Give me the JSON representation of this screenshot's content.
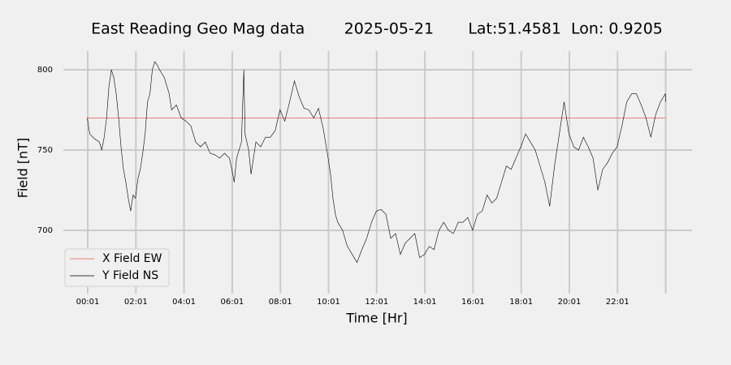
{
  "chart_data": {
    "type": "line",
    "title": "East Reading Geo Mag data        2025-05-21       Lat:51.4581  Lon: 0.9205",
    "x_label": "Time  [Hr]",
    "y_label": "Field  [nT]",
    "xlim": [
      -0.995,
      25.11
    ],
    "ylim": [
      660.6,
      811.6
    ],
    "xticks": [
      {
        "value": 0.0167,
        "label": "00:01"
      },
      {
        "value": 2.0167,
        "label": "02:01"
      },
      {
        "value": 4.0167,
        "label": "04:01"
      },
      {
        "value": 6.0167,
        "label": "06:01"
      },
      {
        "value": 8.0167,
        "label": "08:01"
      },
      {
        "value": 10.0167,
        "label": "10:01"
      },
      {
        "value": 12.0167,
        "label": "12:01"
      },
      {
        "value": 14.0167,
        "label": "14:01"
      },
      {
        "value": 16.0167,
        "label": "16:01"
      },
      {
        "value": 18.0167,
        "label": "18:01"
      },
      {
        "value": 20.0167,
        "label": "20:01"
      },
      {
        "value": 22.0167,
        "label": "22:01"
      },
      {
        "value": 24.0167,
        "label": null
      }
    ],
    "yticks": [
      700,
      750,
      800
    ],
    "grid": true,
    "legend": "lower left",
    "series": [
      {
        "name": "X Field EW",
        "color": "#e8584f",
        "x": [
          0.0,
          24.02
        ],
        "values": [
          770,
          770
        ]
      },
      {
        "name": "Y Field NS",
        "color": "#000000",
        "x": [
          0.0,
          0.1,
          0.3,
          0.5,
          0.6,
          0.7,
          0.8,
          0.9,
          1.0,
          1.1,
          1.2,
          1.3,
          1.4,
          1.5,
          1.6,
          1.7,
          1.8,
          1.9,
          2.0,
          2.1,
          2.2,
          2.3,
          2.4,
          2.5,
          2.6,
          2.7,
          2.8,
          2.9,
          3.0,
          3.2,
          3.4,
          3.5,
          3.7,
          3.9,
          4.1,
          4.3,
          4.5,
          4.7,
          4.9,
          5.1,
          5.3,
          5.5,
          5.7,
          5.9,
          6.0,
          6.1,
          6.2,
          6.4,
          6.5,
          6.55,
          6.7,
          6.8,
          7.0,
          7.2,
          7.4,
          7.6,
          7.8,
          8.0,
          8.2,
          8.4,
          8.6,
          8.8,
          9.0,
          9.2,
          9.4,
          9.6,
          9.8,
          10.0,
          10.1,
          10.2,
          10.3,
          10.4,
          10.6,
          10.8,
          11.0,
          11.2,
          11.4,
          11.6,
          11.8,
          12.0,
          12.2,
          12.4,
          12.6,
          12.8,
          13.0,
          13.2,
          13.4,
          13.6,
          13.8,
          14.0,
          14.2,
          14.4,
          14.6,
          14.8,
          15.0,
          15.2,
          15.4,
          15.6,
          15.8,
          16.0,
          16.2,
          16.4,
          16.6,
          16.8,
          17.0,
          17.2,
          17.4,
          17.6,
          17.8,
          18.0,
          18.2,
          18.4,
          18.6,
          18.8,
          19.0,
          19.2,
          19.4,
          19.6,
          19.8,
          20.0,
          20.2,
          20.4,
          20.6,
          20.8,
          21.0,
          21.2,
          21.4,
          21.6,
          21.8,
          22.0,
          22.2,
          22.4,
          22.6,
          22.8,
          23.0,
          23.2,
          23.4,
          23.6,
          23.8,
          24.0,
          24.02
        ],
        "values": [
          770,
          760,
          757,
          755,
          750,
          758,
          770,
          790,
          800,
          795,
          785,
          770,
          752,
          738,
          730,
          720,
          712,
          722,
          720,
          732,
          738,
          748,
          760,
          780,
          785,
          800,
          805,
          803,
          800,
          795,
          785,
          775,
          778,
          770,
          768,
          765,
          755,
          752,
          755,
          748,
          747,
          745,
          748,
          745,
          738,
          730,
          745,
          755,
          800,
          760,
          750,
          735,
          755,
          752,
          758,
          758,
          762,
          775,
          768,
          780,
          793,
          783,
          776,
          775,
          770,
          776,
          763,
          745,
          735,
          720,
          710,
          705,
          700,
          690,
          685,
          680,
          688,
          695,
          705,
          712,
          713,
          710,
          695,
          698,
          685,
          692,
          695,
          698,
          683,
          685,
          690,
          688,
          700,
          705,
          700,
          698,
          705,
          705,
          708,
          700,
          710,
          712,
          722,
          717,
          720,
          730,
          740,
          738,
          745,
          752,
          760,
          755,
          750,
          740,
          730,
          715,
          740,
          760,
          780,
          760,
          752,
          750,
          758,
          752,
          745,
          725,
          738,
          742,
          748,
          752,
          765,
          780,
          785,
          785,
          778,
          770,
          758,
          772,
          780,
          785,
          780
        ]
      }
    ]
  }
}
